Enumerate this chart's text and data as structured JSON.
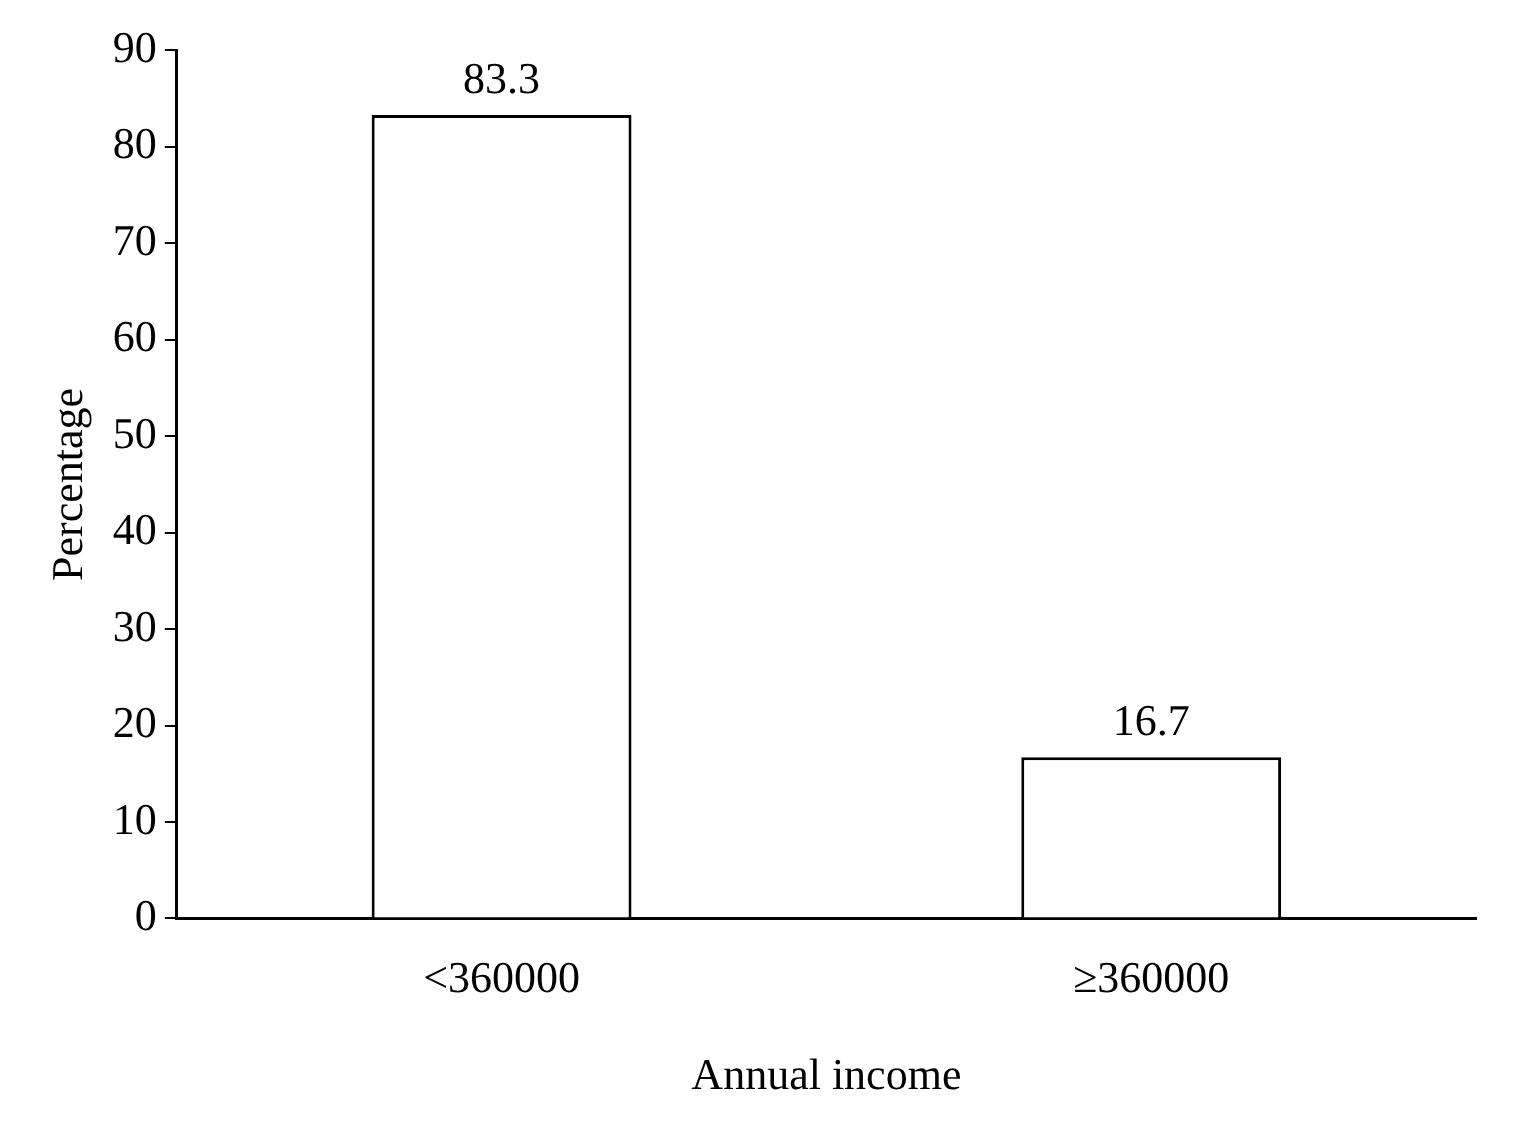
{
  "chart_data": {
    "type": "bar",
    "xlabel": "Annual income",
    "ylabel": "Percentage",
    "categories": [
      "<360000",
      "≥360000"
    ],
    "values": [
      83.3,
      16.7
    ],
    "colors": [
      "#ffffff",
      "#ffffff"
    ],
    "ylim": [
      0,
      90
    ],
    "yticks": [
      0,
      10,
      20,
      30,
      40,
      50,
      60,
      70,
      80,
      90
    ],
    "data_labels": true,
    "grid": false,
    "legend": false
  }
}
